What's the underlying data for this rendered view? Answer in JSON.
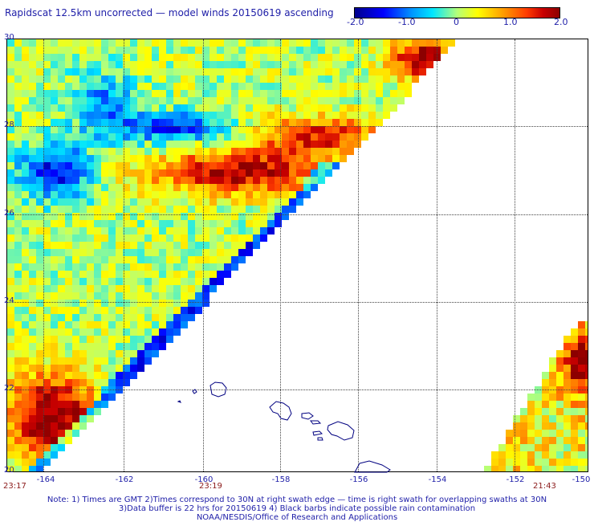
{
  "title": "Rapidscat 12.5km uncorrected — model winds 20150619 ascending",
  "colorbar": {
    "ticks": [
      "-2.0",
      "-1.0",
      "0",
      "1.0",
      "2.0"
    ],
    "range": [
      -2.0,
      2.0
    ]
  },
  "axes": {
    "lat_ticks": [
      "30",
      "28",
      "26",
      "24",
      "22",
      "20"
    ],
    "lon_ticks": [
      "-164",
      "-162",
      "-160",
      "-158",
      "-156",
      "-154",
      "-152",
      "-150"
    ],
    "lat_range": [
      20,
      30
    ],
    "lon_range": [
      -165,
      -150
    ]
  },
  "times": {
    "left": "23:17",
    "middle": "23:19",
    "right": "21:43"
  },
  "notes": {
    "line1": "Note: 1) Times are GMT 2)Times correspond to 30N at right swath edge — time is right swath for overlapping swaths at 30N",
    "line2": "3)Data buffer is 22 hrs for 20150619 4) Black barbs indicate possible rain contamination",
    "line3": "NOAA/NESDIS/Office of Research and Applications"
  }
}
